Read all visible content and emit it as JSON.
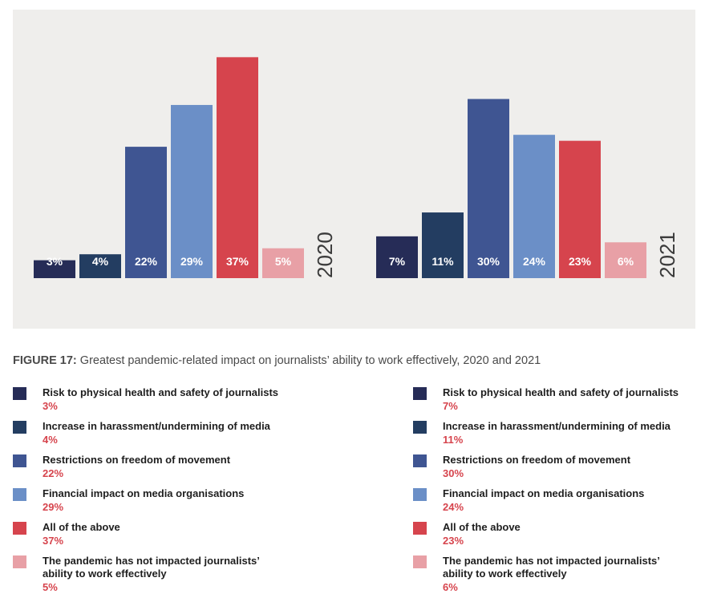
{
  "colors": {
    "risk": "#262c57",
    "harassment": "#233d61",
    "restrictions": "#3f5592",
    "financial": "#6b8fc7",
    "all": "#d6444d",
    "not_impacted": "#e8a0a6",
    "value_red": "#d6444d"
  },
  "chart_data": {
    "type": "bar",
    "categories": [
      "Risk to physical health and safety of journalists",
      "Increase in harassment/undermining of media",
      "Restrictions on freedom of movement",
      "Financial impact on media organisations",
      "All of the above",
      "The pandemic has not impacted journalists’ ability to work effectively"
    ],
    "series": [
      {
        "name": "2020",
        "values": [
          3,
          4,
          22,
          29,
          37,
          5
        ],
        "labels": [
          "3%",
          "4%",
          "22%",
          "29%",
          "37%",
          "5%"
        ]
      },
      {
        "name": "2021",
        "values": [
          7,
          11,
          30,
          24,
          23,
          6
        ],
        "labels": [
          "7%",
          "11%",
          "30%",
          "24%",
          "23%",
          "6%"
        ]
      }
    ],
    "unit": "%",
    "ylim": [
      0,
      40
    ],
    "grid": false,
    "legend": "bottom"
  },
  "caption": {
    "lead": "FIGURE 17:",
    "text": " Greatest pandemic-related impact on journalists’ ability to work effectively, 2020 and 2021"
  },
  "legend_2020": [
    {
      "label": "Risk to physical health and safety of journalists",
      "value": "3%"
    },
    {
      "label": "Increase in harassment/undermining of media",
      "value": "4%"
    },
    {
      "label": "Restrictions on freedom of movement",
      "value": "22%"
    },
    {
      "label": "Financial impact on media organisations",
      "value": "29%"
    },
    {
      "label": "All of the above",
      "value": "37%"
    },
    {
      "label": "The pandemic has not impacted journalists’ ability to work effectively",
      "value": "5%"
    }
  ],
  "legend_2021": [
    {
      "label": "Risk to physical health and safety of journalists",
      "value": "7%"
    },
    {
      "label": "Increase in harassment/undermining of media",
      "value": "11%"
    },
    {
      "label": "Restrictions on freedom of movement",
      "value": "30%"
    },
    {
      "label": "Financial impact on media organisations",
      "value": "24%"
    },
    {
      "label": "All of the above",
      "value": "23%"
    },
    {
      "label": "The pandemic has not impacted journalists’ ability to work effectively",
      "value": "6%"
    }
  ]
}
